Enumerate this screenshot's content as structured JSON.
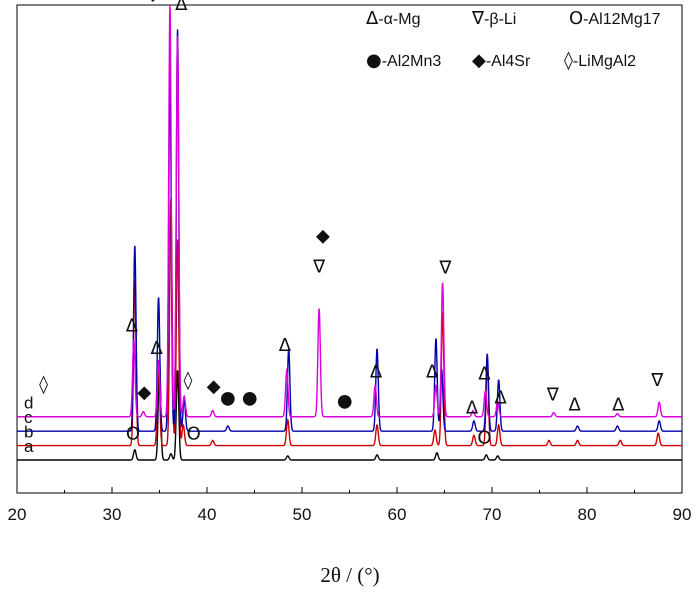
{
  "chart_data": {
    "type": "line",
    "title": "",
    "xlabel": "2θ / (°)",
    "ylabel": "",
    "xlim": [
      20,
      90
    ],
    "xticks": [
      20,
      30,
      40,
      50,
      60,
      70,
      80,
      90
    ],
    "y_axis_units": "relative intensity (arbitrary)",
    "legend": {
      "placement": "top-right",
      "entries": [
        {
          "symbol": "Δ",
          "label": "-α-Mg"
        },
        {
          "symbol": "∇",
          "label": "-β-Li"
        },
        {
          "symbol": "O",
          "label": "-Al12Mg17"
        },
        {
          "symbol": "●",
          "label": "-Al2Mn3"
        },
        {
          "symbol": "◆",
          "label": "-Al4Sr"
        },
        {
          "symbol": "◊",
          "label": "-LiMgAl2"
        }
      ]
    },
    "series": [
      {
        "name": "a",
        "color": "#000000",
        "baseline": 0.0,
        "peaks": [
          [
            32.4,
            0.1
          ],
          [
            35.0,
            0.97
          ],
          [
            36.2,
            0.06
          ],
          [
            36.9,
            0.87
          ],
          [
            48.5,
            0.04
          ],
          [
            57.9,
            0.05
          ],
          [
            64.2,
            0.07
          ],
          [
            69.4,
            0.05
          ],
          [
            70.6,
            0.04
          ]
        ]
      },
      {
        "name": "b",
        "color": "#cc0000",
        "baseline": 0.14,
        "peaks": [
          [
            32.4,
            1.6
          ],
          [
            34.9,
            0.8
          ],
          [
            36.2,
            2.4
          ],
          [
            36.9,
            2.0
          ],
          [
            37.5,
            0.2
          ],
          [
            40.6,
            0.05
          ],
          [
            48.5,
            0.25
          ],
          [
            57.9,
            0.2
          ],
          [
            64.0,
            0.15
          ],
          [
            64.8,
            1.3
          ],
          [
            68.1,
            0.1
          ],
          [
            69.5,
            0.8
          ],
          [
            70.7,
            0.2
          ],
          [
            76.0,
            0.05
          ],
          [
            79.0,
            0.05
          ],
          [
            83.5,
            0.05
          ],
          [
            87.5,
            0.12
          ]
        ]
      },
      {
        "name": "c",
        "color": "#0000aa",
        "baseline": 0.28,
        "peaks": [
          [
            32.4,
            1.8
          ],
          [
            34.9,
            1.3
          ],
          [
            36.1,
            3.5
          ],
          [
            36.9,
            3.9
          ],
          [
            37.6,
            0.3
          ],
          [
            42.2,
            0.05
          ],
          [
            48.6,
            0.8
          ],
          [
            57.9,
            0.8
          ],
          [
            64.1,
            0.9
          ],
          [
            64.7,
            0.6
          ],
          [
            68.1,
            0.1
          ],
          [
            69.5,
            0.75
          ],
          [
            70.7,
            0.5
          ],
          [
            79.0,
            0.05
          ],
          [
            83.2,
            0.05
          ],
          [
            87.6,
            0.1
          ]
        ]
      },
      {
        "name": "d",
        "color": "#dd00dd",
        "baseline": 0.42,
        "peaks": [
          [
            32.3,
            0.75
          ],
          [
            33.3,
            0.05
          ],
          [
            34.9,
            0.55
          ],
          [
            36.1,
            4.0
          ],
          [
            36.9,
            3.7
          ],
          [
            37.6,
            0.2
          ],
          [
            40.6,
            0.06
          ],
          [
            48.4,
            0.45
          ],
          [
            51.8,
            1.05
          ],
          [
            57.7,
            0.3
          ],
          [
            64.1,
            0.3
          ],
          [
            64.8,
            1.3
          ],
          [
            68.0,
            0.06
          ],
          [
            69.3,
            0.25
          ],
          [
            70.6,
            0.15
          ],
          [
            76.5,
            0.04
          ],
          [
            83.2,
            0.03
          ],
          [
            87.6,
            0.14
          ]
        ]
      }
    ],
    "annotations": [
      {
        "symbol": "O",
        "x": 32.2,
        "level": 0.2
      },
      {
        "symbol": "O",
        "x": 38.6,
        "level": 0.2
      },
      {
        "symbol": "O",
        "x": 69.2,
        "level": 0.16
      },
      {
        "symbol": "◊",
        "x": 22.8,
        "level": 0.68
      },
      {
        "symbol": "Δ",
        "x": 32.1,
        "level": 1.25
      },
      {
        "symbol": "◆",
        "x": 33.4,
        "level": 0.6
      },
      {
        "symbol": "Δ",
        "x": 34.7,
        "level": 1.03
      },
      {
        "symbol": "∇",
        "x": 34.3,
        "level": 4.45
      },
      {
        "symbol": "Δ",
        "x": 37.3,
        "level": 4.37
      },
      {
        "symbol": "◊",
        "x": 38.0,
        "level": 0.72
      },
      {
        "symbol": "◆",
        "x": 40.7,
        "level": 0.66
      },
      {
        "symbol": "●",
        "x": 42.2,
        "level": 0.55
      },
      {
        "symbol": "●",
        "x": 44.5,
        "level": 0.55
      },
      {
        "symbol": "Δ",
        "x": 48.2,
        "level": 1.06
      },
      {
        "symbol": "◆",
        "x": 52.2,
        "level": 2.12
      },
      {
        "symbol": "∇",
        "x": 51.8,
        "level": 1.82
      },
      {
        "symbol": "●",
        "x": 54.5,
        "level": 0.52
      },
      {
        "symbol": "Δ",
        "x": 57.8,
        "level": 0.8
      },
      {
        "symbol": "Δ",
        "x": 63.7,
        "level": 0.8
      },
      {
        "symbol": "∇",
        "x": 65.1,
        "level": 1.81
      },
      {
        "symbol": "Δ",
        "x": 69.2,
        "level": 0.78
      },
      {
        "symbol": "Δ",
        "x": 67.9,
        "level": 0.45
      },
      {
        "symbol": "Δ",
        "x": 70.9,
        "level": 0.55
      },
      {
        "symbol": "∇",
        "x": 76.4,
        "level": 0.58
      },
      {
        "symbol": "Δ",
        "x": 78.7,
        "level": 0.48
      },
      {
        "symbol": "Δ",
        "x": 83.3,
        "level": 0.48
      },
      {
        "symbol": "∇",
        "x": 87.4,
        "level": 0.72
      }
    ]
  }
}
